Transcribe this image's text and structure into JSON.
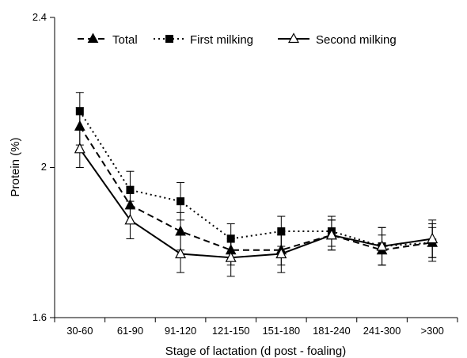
{
  "chart_data": {
    "type": "line",
    "xlabel": "Stage of lactation (d post - foaling)",
    "ylabel": "Protein (%)",
    "ylim": [
      1.6,
      2.4
    ],
    "yticks": [
      "1.6",
      "2",
      "2.4"
    ],
    "categories": [
      "30-60",
      "61-90",
      "91-120",
      "121-150",
      "151-180",
      "181-240",
      "241-300",
      ">300"
    ],
    "grid": false,
    "legend_position": "top",
    "series": [
      {
        "name": "Total",
        "marker": "filled-triangle",
        "line_style": "dashed",
        "values": [
          2.11,
          1.9,
          1.83,
          1.78,
          1.78,
          1.82,
          1.78,
          1.8
        ],
        "errors": [
          0.05,
          0.05,
          0.05,
          0.04,
          0.04,
          0.04,
          0.04,
          0.04
        ]
      },
      {
        "name": "First milking",
        "marker": "filled-square",
        "line_style": "dotted",
        "values": [
          2.15,
          1.94,
          1.91,
          1.81,
          1.83,
          1.83,
          1.79,
          1.8
        ],
        "errors": [
          0.05,
          0.05,
          0.05,
          0.04,
          0.04,
          0.04,
          0.05,
          0.05
        ]
      },
      {
        "name": "Second milking",
        "marker": "open-triangle",
        "line_style": "solid",
        "values": [
          2.05,
          1.86,
          1.77,
          1.76,
          1.77,
          1.82,
          1.79,
          1.81
        ],
        "errors": [
          0.05,
          0.05,
          0.05,
          0.05,
          0.05,
          0.04,
          0.05,
          0.05
        ]
      }
    ]
  }
}
